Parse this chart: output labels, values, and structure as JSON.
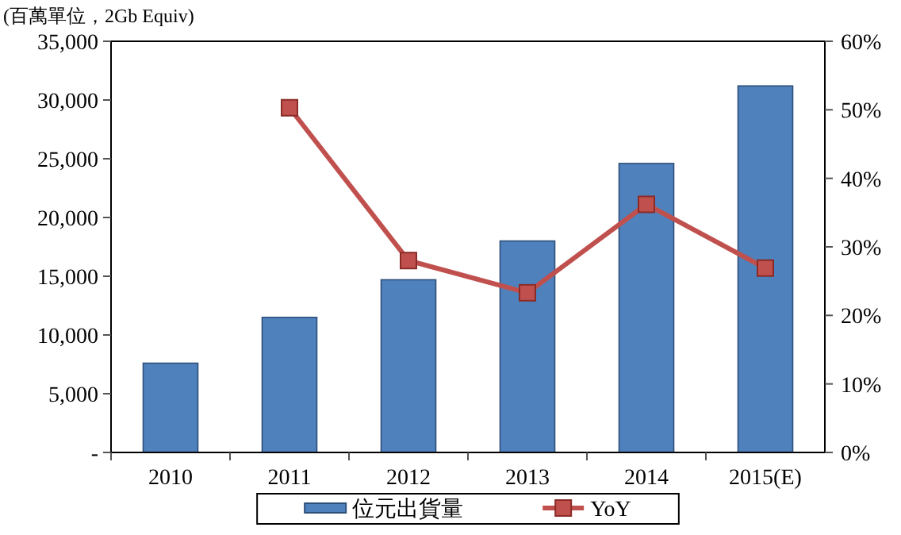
{
  "chart_data": {
    "type": "bar",
    "ylabel": "(百萬單位，2Gb Equiv)",
    "categories": [
      "2010",
      "2011",
      "2012",
      "2013",
      "2014",
      "2015(E)"
    ],
    "series": [
      {
        "name": "位元出貨量",
        "color": "#4f81bd",
        "values": [
          7600,
          11500,
          14700,
          18000,
          24600,
          31200
        ]
      },
      {
        "name": "YoY",
        "type": "line",
        "axis": "y2",
        "color": "#c0504d",
        "marker": "square",
        "values": [
          null,
          50.3,
          28,
          23.3,
          36.2,
          26.9
        ]
      }
    ],
    "ylim": [
      0,
      35000
    ],
    "yticks": [
      {
        "value": 0,
        "label": "-"
      },
      {
        "value": 5000,
        "label": "5,000"
      },
      {
        "value": 10000,
        "label": "10,000"
      },
      {
        "value": 15000,
        "label": "15,000"
      },
      {
        "value": 20000,
        "label": "20,000"
      },
      {
        "value": 25000,
        "label": "25,000"
      },
      {
        "value": 30000,
        "label": "30,000"
      },
      {
        "value": 35000,
        "label": "35,000"
      }
    ],
    "y2lim": [
      0,
      60
    ],
    "y2ticks": [
      {
        "value": 0,
        "label": "0%"
      },
      {
        "value": 10,
        "label": "10%"
      },
      {
        "value": 20,
        "label": "20%"
      },
      {
        "value": 30,
        "label": "30%"
      },
      {
        "value": 40,
        "label": "40%"
      },
      {
        "value": 50,
        "label": "50%"
      },
      {
        "value": 60,
        "label": "60%"
      }
    ],
    "grid": false,
    "legend": "bottom"
  }
}
